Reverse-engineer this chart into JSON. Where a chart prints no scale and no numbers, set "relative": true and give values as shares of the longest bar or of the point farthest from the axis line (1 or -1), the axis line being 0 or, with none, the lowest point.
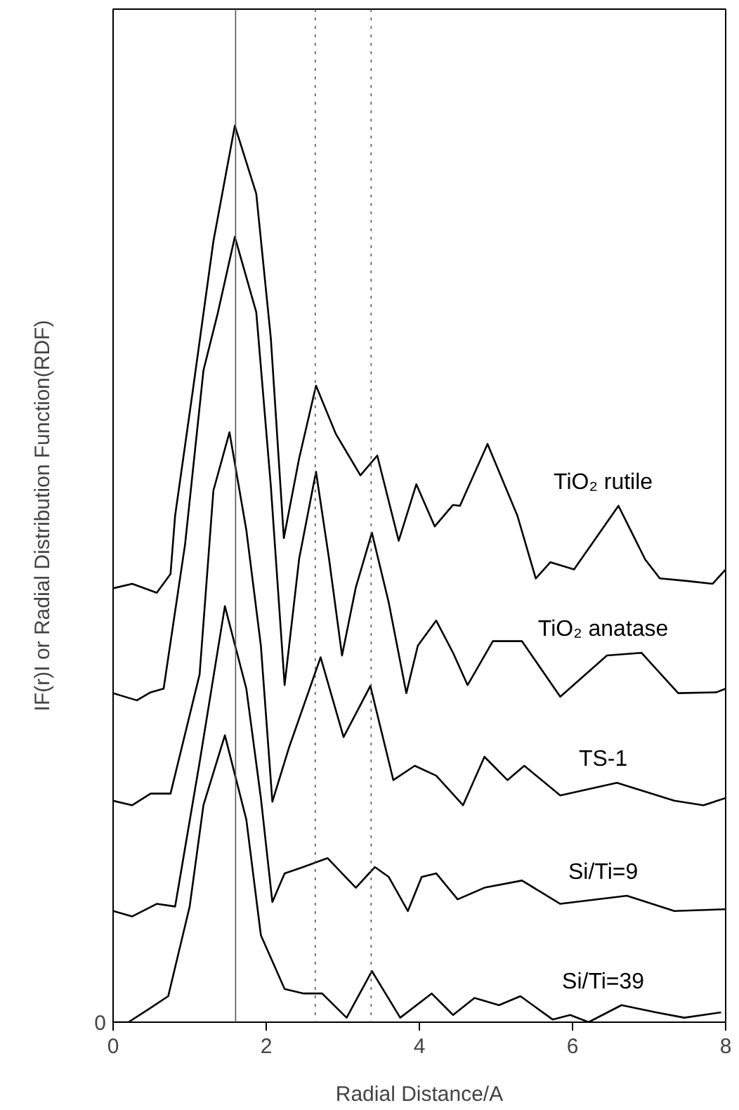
{
  "chart_data": {
    "type": "line",
    "relative": true,
    "xlabel": "Radial Distance/A",
    "ylabel": "IF(r)I or Radial Distribution Function(RDF)",
    "xlim": [
      0,
      8
    ],
    "xticks": [
      0,
      2,
      4,
      6,
      8
    ],
    "tick_labels": "x",
    "grid": false,
    "marker": "none",
    "line_style": "solid",
    "series": [
      {
        "name": "TiO₂ rutile",
        "color": "#000000",
        "x": [
          0,
          0.25,
          0.57,
          0.75,
          0.81,
          1.05,
          1.31,
          1.59,
          1.87,
          2.06,
          2.23,
          2.43,
          2.65,
          2.91,
          3.23,
          3.45,
          3.73,
          3.96,
          4.2,
          4.44,
          4.53,
          4.89,
          5.28,
          5.52,
          5.71,
          6.02,
          6.6,
          6.95,
          7.14,
          7.51,
          7.83,
          8.0
        ],
        "values": [
          0.484,
          0.489,
          0.479,
          0.5,
          0.565,
          0.71,
          0.871,
          1,
          0.924,
          0.763,
          0.54,
          0.629,
          0.71,
          0.656,
          0.61,
          0.632,
          0.537,
          0.6,
          0.553,
          0.577,
          0.576,
          0.645,
          0.565,
          0.495,
          0.513,
          0.505,
          0.576,
          0.516,
          0.495,
          0.492,
          0.489,
          0.505
        ]
      },
      {
        "name": "TiO₂ anatase",
        "color": "#000000",
        "x": [
          0,
          0.31,
          0.49,
          0.66,
          0.94,
          1.18,
          1.37,
          1.59,
          1.87,
          2.06,
          2.24,
          2.43,
          2.65,
          2.82,
          2.99,
          3.17,
          3.38,
          3.6,
          3.83,
          3.98,
          4.22,
          4.44,
          4.63,
          4.96,
          5.34,
          5.84,
          6.45,
          6.9,
          7.38,
          7.88,
          8.0
        ],
        "values": [
          0.367,
          0.359,
          0.368,
          0.372,
          0.533,
          0.727,
          0.792,
          0.876,
          0.792,
          0.598,
          0.376,
          0.517,
          0.614,
          0.517,
          0.409,
          0.485,
          0.546,
          0.468,
          0.367,
          0.42,
          0.448,
          0.412,
          0.376,
          0.425,
          0.425,
          0.363,
          0.409,
          0.412,
          0.367,
          0.368,
          0.372
        ]
      },
      {
        "name": "TS-1",
        "color": "#000000",
        "x": [
          0,
          0.25,
          0.49,
          0.75,
          1.13,
          1.31,
          1.52,
          1.74,
          1.93,
          2.08,
          2.3,
          2.71,
          3.01,
          3.36,
          3.66,
          3.94,
          4.22,
          4.57,
          4.85,
          5.15,
          5.37,
          5.84,
          6.58,
          7.33,
          7.71,
          8.0
        ],
        "values": [
          0.247,
          0.242,
          0.255,
          0.255,
          0.388,
          0.593,
          0.658,
          0.549,
          0.42,
          0.246,
          0.307,
          0.407,
          0.318,
          0.375,
          0.27,
          0.286,
          0.275,
          0.242,
          0.296,
          0.27,
          0.286,
          0.253,
          0.267,
          0.247,
          0.242,
          0.25
        ]
      },
      {
        "name": "Si/Ti=9",
        "color": "#000000",
        "x": [
          0,
          0.25,
          0.57,
          0.81,
          1.13,
          1.46,
          1.74,
          1.93,
          2.08,
          2.24,
          2.48,
          2.8,
          3.17,
          3.42,
          3.6,
          3.85,
          4.03,
          4.22,
          4.5,
          4.85,
          5.34,
          5.84,
          6.71,
          7.33,
          8.0
        ],
        "values": [
          0.124,
          0.118,
          0.132,
          0.129,
          0.29,
          0.464,
          0.372,
          0.25,
          0.134,
          0.166,
          0.173,
          0.183,
          0.15,
          0.173,
          0.162,
          0.124,
          0.162,
          0.166,
          0.137,
          0.15,
          0.158,
          0.132,
          0.141,
          0.124,
          0.126
        ]
      },
      {
        "name": "Si/Ti=39",
        "color": "#000000",
        "x": [
          0,
          0.2,
          0.49,
          0.72,
          1.0,
          1.18,
          1.46,
          1.74,
          1.93,
          2.24,
          2.49,
          2.73,
          3.05,
          3.38,
          3.75,
          4.16,
          4.44,
          4.72,
          5.04,
          5.32,
          5.74,
          5.97,
          6.21,
          6.64,
          7.09,
          7.46,
          7.94
        ],
        "values": [
          0,
          0,
          0.016,
          0.029,
          0.129,
          0.242,
          0.32,
          0.226,
          0.097,
          0.037,
          0.032,
          0.032,
          0.005,
          0.057,
          0.005,
          0.032,
          0.008,
          0.027,
          0.019,
          0.029,
          0.003,
          0.008,
          0,
          0.019,
          0.011,
          0.005,
          0.011
        ]
      }
    ],
    "ref_lines": [
      {
        "axis": "x",
        "value": 1.6,
        "color": "#555555"
      },
      {
        "axis": "x",
        "value": 2.64,
        "color": "#555555",
        "line_style": "dotted"
      },
      {
        "axis": "x",
        "value": 3.37,
        "color": "#555555",
        "line_style": "dotted"
      }
    ],
    "annotations": [
      "0"
    ]
  }
}
